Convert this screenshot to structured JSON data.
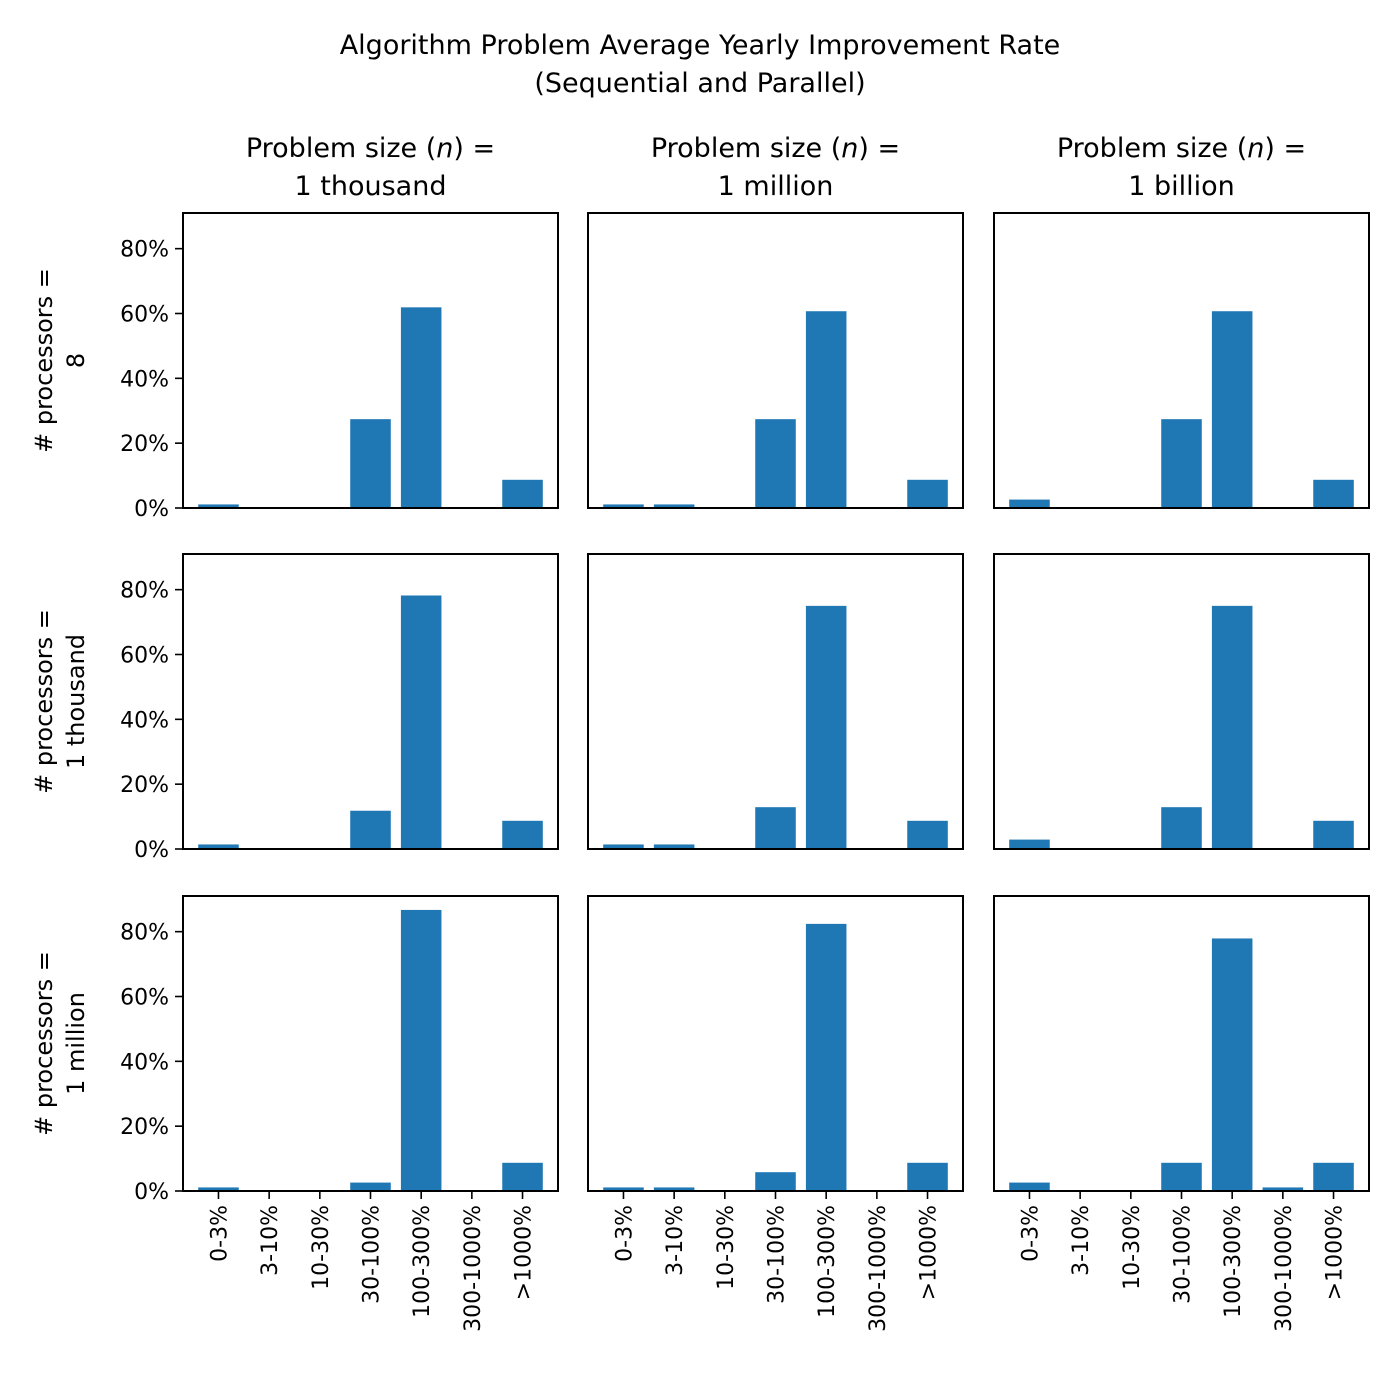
{
  "chart_data": {
    "type": "bar",
    "title": "Algorithm Problem Average Yearly Improvement Rate",
    "subtitle": "(Sequential and Parallel)",
    "categories": [
      "0-3%",
      "3-10%",
      "10-30%",
      "30-100%",
      "100-300%",
      "300-1000%",
      ">1000%"
    ],
    "column_titles": [
      {
        "line1": "Problem size (n) =",
        "line1_prefix": "Problem size (",
        "line1_var": "n",
        "line1_suffix": ") =",
        "line2": "1 thousand"
      },
      {
        "line1": "Problem size (n) =",
        "line1_prefix": "Problem size (",
        "line1_var": "n",
        "line1_suffix": ") =",
        "line2": "1 million"
      },
      {
        "line1": "Problem size (n) =",
        "line1_prefix": "Problem size (",
        "line1_var": "n",
        "line1_suffix": ") =",
        "line2": "1 billion"
      }
    ],
    "row_labels": [
      {
        "line1": "# processors =",
        "line2": "8"
      },
      {
        "line1": "# processors =",
        "line2": "1 thousand"
      },
      {
        "line1": "# processors =",
        "line2": "1 million"
      }
    ],
    "yticks": [
      0,
      20,
      40,
      60,
      80
    ],
    "ytick_labels": [
      "0%",
      "20%",
      "40%",
      "60%",
      "80%"
    ],
    "ylim": [
      0,
      91
    ],
    "bar_color": "#1f77b4",
    "panels": [
      [
        {
          "values": [
            1.1,
            0,
            0,
            27.4,
            61.9,
            0,
            8.7
          ]
        },
        {
          "values": [
            1.1,
            1.1,
            0,
            27.4,
            60.7,
            0,
            8.7
          ]
        },
        {
          "values": [
            2.6,
            0,
            0,
            27.4,
            60.7,
            0,
            8.7
          ]
        }
      ],
      [
        {
          "values": [
            1.4,
            0,
            0,
            11.8,
            78.2,
            0,
            8.7
          ]
        },
        {
          "values": [
            1.4,
            1.4,
            0,
            12.9,
            75.0,
            0,
            8.7
          ]
        },
        {
          "values": [
            2.9,
            0,
            0,
            12.9,
            75.0,
            0,
            8.7
          ]
        }
      ],
      [
        {
          "values": [
            1.1,
            0,
            0,
            2.6,
            86.7,
            0,
            8.7
          ]
        },
        {
          "values": [
            1.1,
            1.1,
            0,
            5.8,
            82.4,
            0,
            8.7
          ]
        },
        {
          "values": [
            2.6,
            0,
            0,
            8.7,
            77.9,
            1.1,
            8.7
          ]
        }
      ]
    ]
  }
}
